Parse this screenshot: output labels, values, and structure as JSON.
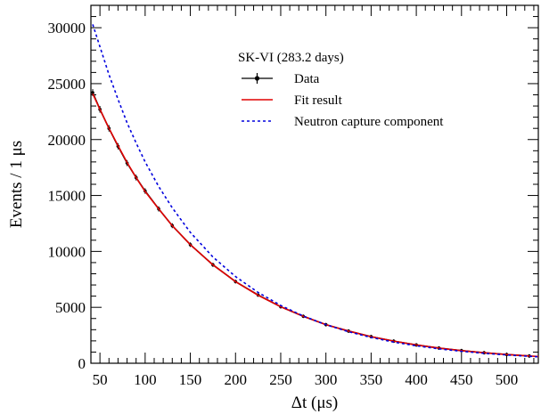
{
  "chart_data": {
    "type": "line",
    "xlabel": "Δt (μs)",
    "ylabel": "Events / 1 μs",
    "xlim": [
      40,
      535
    ],
    "ylim": [
      0,
      32000
    ],
    "x_ticks": [
      50,
      100,
      150,
      200,
      250,
      300,
      350,
      400,
      450,
      500
    ],
    "y_ticks": [
      0,
      5000,
      10000,
      15000,
      20000,
      25000,
      30000
    ],
    "x_tick_labels": [
      "50",
      "100",
      "150",
      "200",
      "250",
      "300",
      "350",
      "400",
      "450",
      "500"
    ],
    "y_tick_labels": [
      "0",
      "5000",
      "10000",
      "15000",
      "20000",
      "25000",
      "30000"
    ],
    "grid": false,
    "legend": {
      "placement": "top-right",
      "header": "SK-VI (283.2 days)",
      "entries": [
        "Data",
        "Fit result",
        "Neutron capture component"
      ]
    },
    "series": [
      {
        "name": "Data",
        "style": "points",
        "color": "#000000",
        "x": [
          42,
          50,
          60,
          70,
          80,
          90,
          100,
          115,
          130,
          150,
          175,
          200,
          225,
          250,
          275,
          300,
          325,
          350,
          375,
          400,
          425,
          450,
          475,
          500,
          525
        ],
        "y": [
          24200,
          22700,
          21000,
          19400,
          17900,
          16600,
          15400,
          13800,
          12300,
          10600,
          8800,
          7300,
          6100,
          5050,
          4200,
          3450,
          2880,
          2380,
          1980,
          1640,
          1360,
          1130,
          940,
          780,
          650
        ]
      },
      {
        "name": "Fit result",
        "style": "solid",
        "color": "#e00000",
        "x": [
          42,
          50,
          60,
          70,
          80,
          90,
          100,
          115,
          130,
          150,
          175,
          200,
          225,
          250,
          275,
          300,
          325,
          350,
          375,
          400,
          425,
          450,
          475,
          500,
          525,
          535
        ],
        "y": [
          24100,
          22700,
          21000,
          19450,
          17950,
          16600,
          15350,
          13800,
          12300,
          10600,
          8800,
          7300,
          6080,
          5050,
          4200,
          3450,
          2880,
          2380,
          1980,
          1640,
          1360,
          1130,
          940,
          780,
          650,
          600
        ]
      },
      {
        "name": "Neutron capture component",
        "style": "dashed",
        "color": "#0000dd",
        "x": [
          42,
          50,
          60,
          70,
          80,
          90,
          100,
          115,
          130,
          150,
          175,
          200,
          225,
          250,
          275,
          300,
          325,
          350,
          375,
          400,
          425,
          450,
          475,
          500,
          525,
          535
        ],
        "y": [
          30300,
          28300,
          25800,
          23600,
          21500,
          19700,
          18000,
          15800,
          13900,
          11700,
          9500,
          7750,
          6330,
          5170,
          4220,
          3450,
          2820,
          2310,
          1890,
          1560,
          1290,
          1070,
          890,
          740,
          620,
          580
        ]
      }
    ]
  }
}
